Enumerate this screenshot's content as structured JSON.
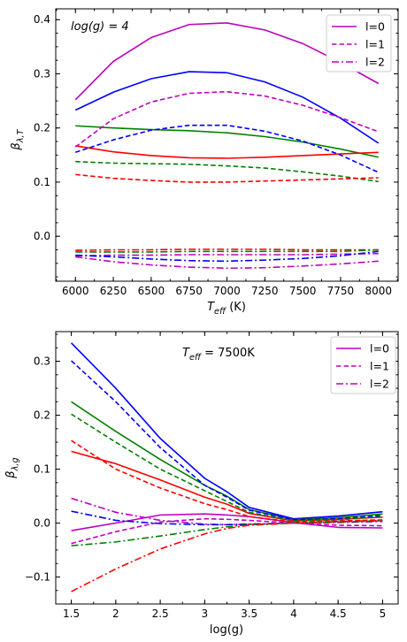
{
  "chart_data": [
    {
      "type": "line",
      "annotation": "log(g) = 4",
      "xlabel": "T_eff (K)",
      "ylabel": "β_λ,T",
      "xlim": [
        5870,
        8130
      ],
      "ylim": [
        -0.083,
        0.42
      ],
      "xticks": [
        6000,
        6250,
        6500,
        6750,
        7000,
        7250,
        7500,
        7750,
        8000
      ],
      "yticks": [
        0.0,
        0.1,
        0.2,
        0.3,
        0.4
      ],
      "grid": false,
      "legend_position": "top-right",
      "legend": [
        {
          "label": "l=0",
          "dash": "solid"
        },
        {
          "label": "l=1",
          "dash": "dashed"
        },
        {
          "label": "l=2",
          "dash": "dashdot"
        }
      ],
      "x": [
        6000,
        6250,
        6500,
        6750,
        7000,
        7250,
        7500,
        7750,
        8000
      ],
      "series": [
        {
          "color": "#bf00bf",
          "dash": "solid",
          "values": [
            0.252,
            0.323,
            0.367,
            0.391,
            0.394,
            0.381,
            0.356,
            0.321,
            0.282
          ]
        },
        {
          "color": "#0000ff",
          "dash": "solid",
          "values": [
            0.233,
            0.266,
            0.291,
            0.304,
            0.302,
            0.285,
            0.257,
            0.218,
            0.172
          ]
        },
        {
          "color": "#008000",
          "dash": "solid",
          "values": [
            0.204,
            0.2,
            0.197,
            0.195,
            0.191,
            0.184,
            0.174,
            0.161,
            0.146
          ]
        },
        {
          "color": "#ff0000",
          "dash": "solid",
          "values": [
            0.167,
            0.156,
            0.149,
            0.145,
            0.144,
            0.146,
            0.149,
            0.152,
            0.155
          ]
        },
        {
          "color": "#bf00bf",
          "dash": "dashed",
          "values": [
            0.165,
            0.217,
            0.248,
            0.264,
            0.267,
            0.259,
            0.242,
            0.219,
            0.193
          ]
        },
        {
          "color": "#0000ff",
          "dash": "dashed",
          "values": [
            0.155,
            0.178,
            0.196,
            0.205,
            0.205,
            0.194,
            0.176,
            0.15,
            0.118
          ]
        },
        {
          "color": "#008000",
          "dash": "dashed",
          "values": [
            0.138,
            0.135,
            0.134,
            0.133,
            0.13,
            0.126,
            0.119,
            0.111,
            0.101
          ]
        },
        {
          "color": "#ff0000",
          "dash": "dashed",
          "values": [
            0.114,
            0.107,
            0.103,
            0.1,
            0.1,
            0.102,
            0.104,
            0.106,
            0.108
          ]
        },
        {
          "color": "#ff0000",
          "dash": "dashdot",
          "values": [
            -0.026,
            -0.025,
            -0.025,
            -0.024,
            -0.024,
            -0.024,
            -0.025,
            -0.025,
            -0.025
          ]
        },
        {
          "color": "#008000",
          "dash": "dashdot",
          "values": [
            -0.029,
            -0.029,
            -0.029,
            -0.028,
            -0.028,
            -0.028,
            -0.028,
            -0.028,
            -0.025
          ]
        },
        {
          "color": "#bf00bf",
          "dash": "dashdot",
          "values": [
            -0.036,
            -0.035,
            -0.035,
            -0.034,
            -0.034,
            -0.034,
            -0.034,
            -0.033,
            -0.032
          ]
        },
        {
          "color": "#0000ff",
          "dash": "dashdot",
          "values": [
            -0.035,
            -0.038,
            -0.042,
            -0.045,
            -0.046,
            -0.044,
            -0.041,
            -0.036,
            -0.028
          ]
        },
        {
          "color": "#bf00bf",
          "dash": "dashdot",
          "values": [
            -0.038,
            -0.047,
            -0.053,
            -0.057,
            -0.059,
            -0.058,
            -0.055,
            -0.051,
            -0.046
          ]
        }
      ]
    },
    {
      "type": "line",
      "annotation": "T_eff = 7500K",
      "xlabel": "log(g)",
      "ylabel": "β_λ,g",
      "xlim": [
        1.325,
        5.175
      ],
      "ylim": [
        -0.15,
        0.355
      ],
      "xticks": [
        1.5,
        2.0,
        2.5,
        3.0,
        3.5,
        4.0,
        4.5,
        5.0
      ],
      "yticks": [
        -0.1,
        0.0,
        0.1,
        0.2,
        0.3
      ],
      "grid": false,
      "legend_position": "top-right",
      "legend": [
        {
          "label": "l=0",
          "dash": "solid"
        },
        {
          "label": "l=1",
          "dash": "dashed"
        },
        {
          "label": "l=2",
          "dash": "dashdot"
        }
      ],
      "x": [
        1.5,
        2.0,
        2.5,
        3.0,
        3.25,
        3.5,
        4.0,
        4.5,
        5.0
      ],
      "series": [
        {
          "color": "#0000ff",
          "dash": "solid",
          "values": [
            0.334,
            0.25,
            0.157,
            0.083,
            0.058,
            0.029,
            0.008,
            0.013,
            0.021
          ]
        },
        {
          "color": "#008000",
          "dash": "solid",
          "values": [
            0.225,
            0.17,
            0.118,
            0.07,
            0.05,
            0.025,
            0.006,
            0.01,
            0.017
          ]
        },
        {
          "color": "#ff0000",
          "dash": "solid",
          "values": [
            0.133,
            0.11,
            0.08,
            0.048,
            0.035,
            0.018,
            0.004,
            0.007,
            0.011
          ]
        },
        {
          "color": "#bf00bf",
          "dash": "solid",
          "values": [
            -0.014,
            0.0,
            0.015,
            0.017,
            0.015,
            0.012,
            0.001,
            -0.008,
            -0.009
          ]
        },
        {
          "color": "#0000ff",
          "dash": "dashed",
          "values": [
            0.301,
            0.225,
            0.14,
            0.07,
            0.048,
            0.024,
            0.006,
            0.008,
            0.014
          ]
        },
        {
          "color": "#008000",
          "dash": "dashed",
          "values": [
            0.202,
            0.15,
            0.1,
            0.06,
            0.04,
            0.02,
            0.004,
            0.006,
            0.012
          ]
        },
        {
          "color": "#ff0000",
          "dash": "dashed",
          "values": [
            0.153,
            0.1,
            0.065,
            0.036,
            0.025,
            0.012,
            0.002,
            0.004,
            0.006
          ]
        },
        {
          "color": "#bf00bf",
          "dash": "dashed",
          "values": [
            -0.038,
            -0.016,
            0.002,
            0.008,
            0.007,
            0.005,
            0.0,
            -0.004,
            -0.005
          ]
        },
        {
          "color": "#bf00bf",
          "dash": "dashdot",
          "values": [
            0.046,
            0.02,
            0.005,
            -0.002,
            -0.003,
            -0.002,
            0.0,
            0.001,
            0.003
          ]
        },
        {
          "color": "#0000ff",
          "dash": "dashdot",
          "values": [
            0.022,
            0.005,
            -0.001,
            -0.003,
            -0.003,
            -0.002,
            0.0,
            0.002,
            0.004
          ]
        },
        {
          "color": "#008000",
          "dash": "dashdot",
          "values": [
            -0.042,
            -0.035,
            -0.024,
            -0.012,
            -0.007,
            -0.003,
            0.0,
            0.002,
            0.004
          ]
        },
        {
          "color": "#ff0000",
          "dash": "dashdot",
          "values": [
            -0.127,
            -0.085,
            -0.048,
            -0.02,
            -0.01,
            -0.004,
            0.0,
            0.003,
            0.005
          ]
        }
      ]
    }
  ]
}
